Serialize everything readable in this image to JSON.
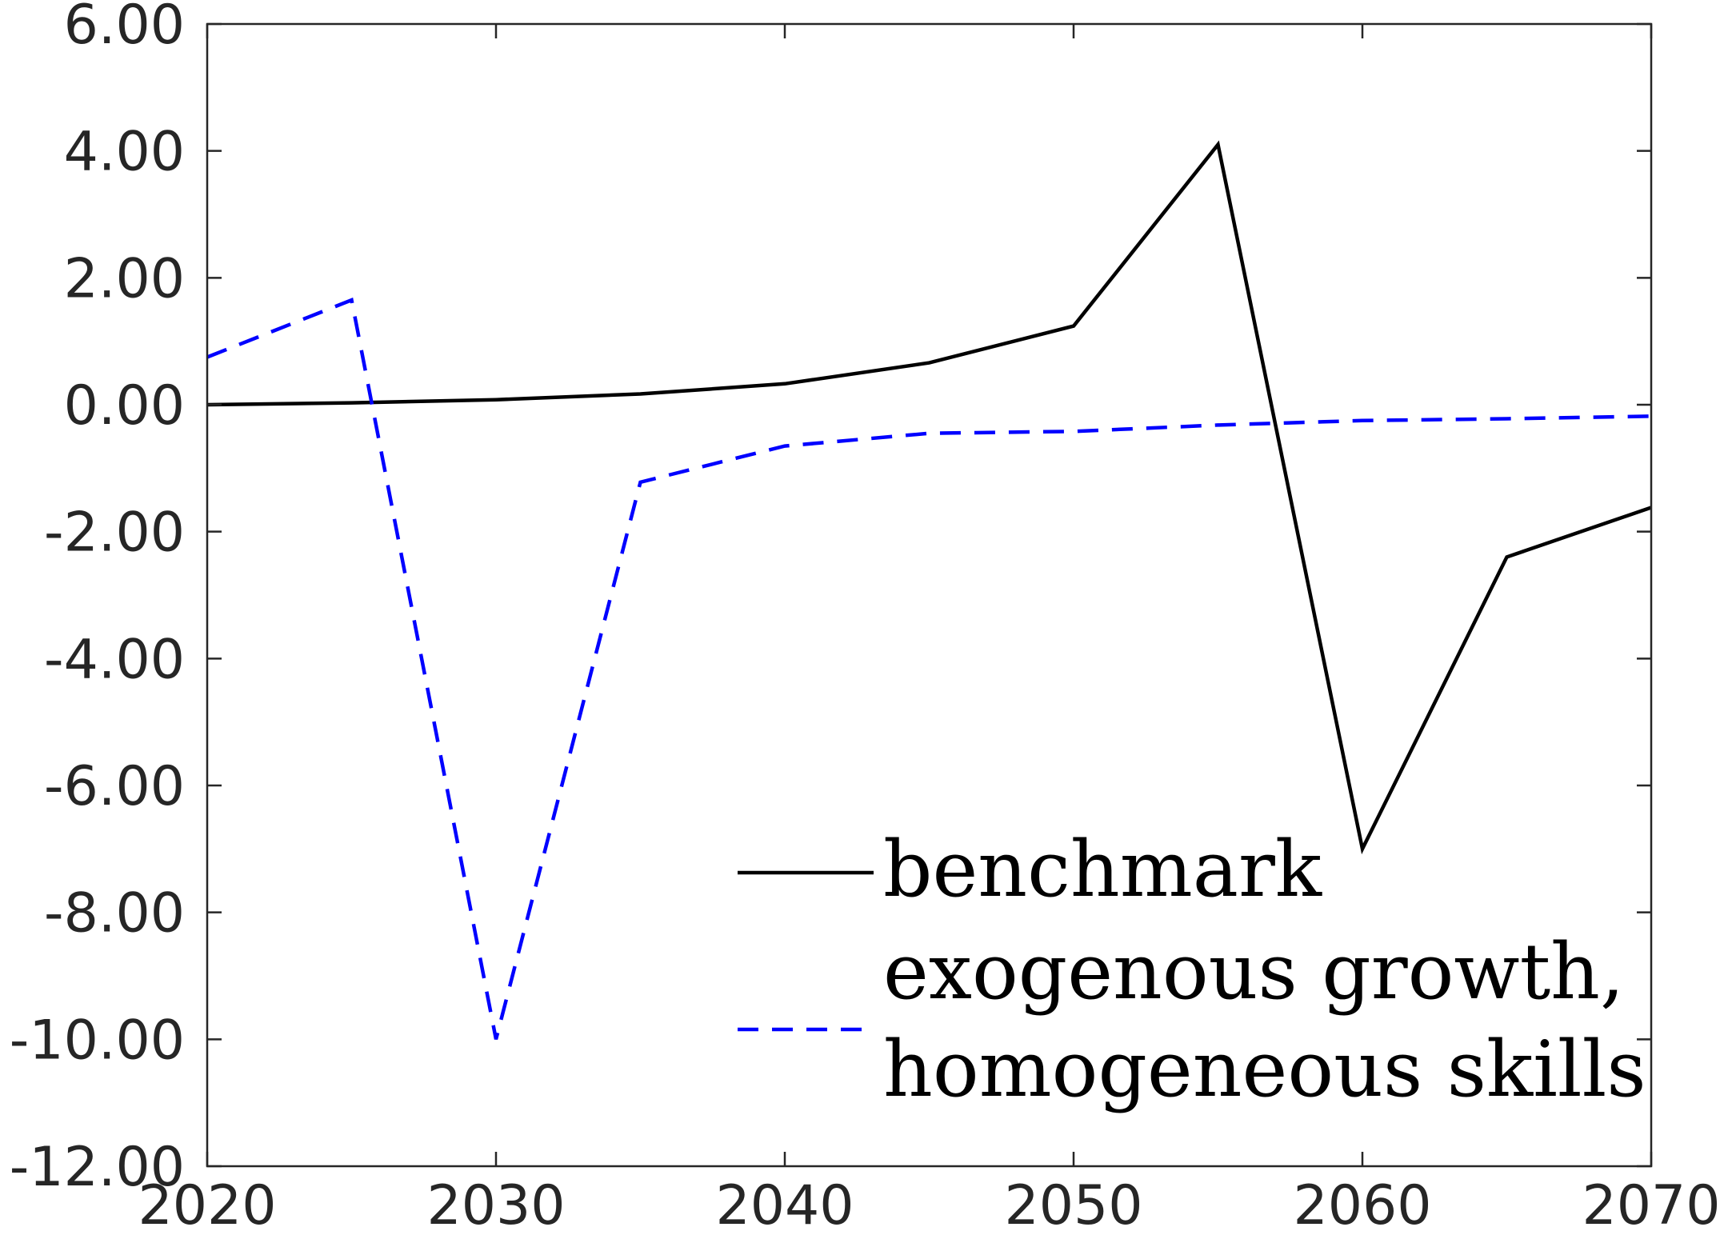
{
  "chart_data": {
    "type": "line",
    "x": [
      2020,
      2025,
      2030,
      2035,
      2040,
      2045,
      2050,
      2055,
      2060,
      2065,
      2070
    ],
    "xlim": [
      2020,
      2070
    ],
    "ylim": [
      -12,
      6
    ],
    "xticks": [
      2020,
      2030,
      2040,
      2050,
      2060,
      2070
    ],
    "xtick_labels": [
      "2020",
      "2030",
      "2040",
      "2050",
      "2060",
      "2070"
    ],
    "yticks": [
      6,
      4,
      2,
      0,
      -2,
      -4,
      -6,
      -8,
      -10,
      -12
    ],
    "ytick_labels": [
      "6.00",
      "4.00",
      "2.00",
      "0.00",
      "-2.00",
      "-4.00",
      "-6.00",
      "-8.00",
      "-10.00",
      "-12.00"
    ],
    "grid": false,
    "legend_position": "bottom-right",
    "series": [
      {
        "name": "benchmark",
        "color": "#000000",
        "style": "solid",
        "values": [
          0.0,
          0.03,
          0.08,
          0.17,
          0.33,
          0.66,
          1.24,
          4.1,
          -7.0,
          -2.4,
          -1.62
        ]
      },
      {
        "name": "exogenous growth, homogeneous skills",
        "name_lines": [
          "exogenous growth,",
          "homogeneous skills"
        ],
        "color": "#0000ff",
        "style": "dashed",
        "values": [
          0.75,
          1.65,
          -10.0,
          -1.22,
          -0.65,
          -0.45,
          -0.42,
          -0.32,
          -0.25,
          -0.22,
          -0.18
        ]
      }
    ]
  }
}
